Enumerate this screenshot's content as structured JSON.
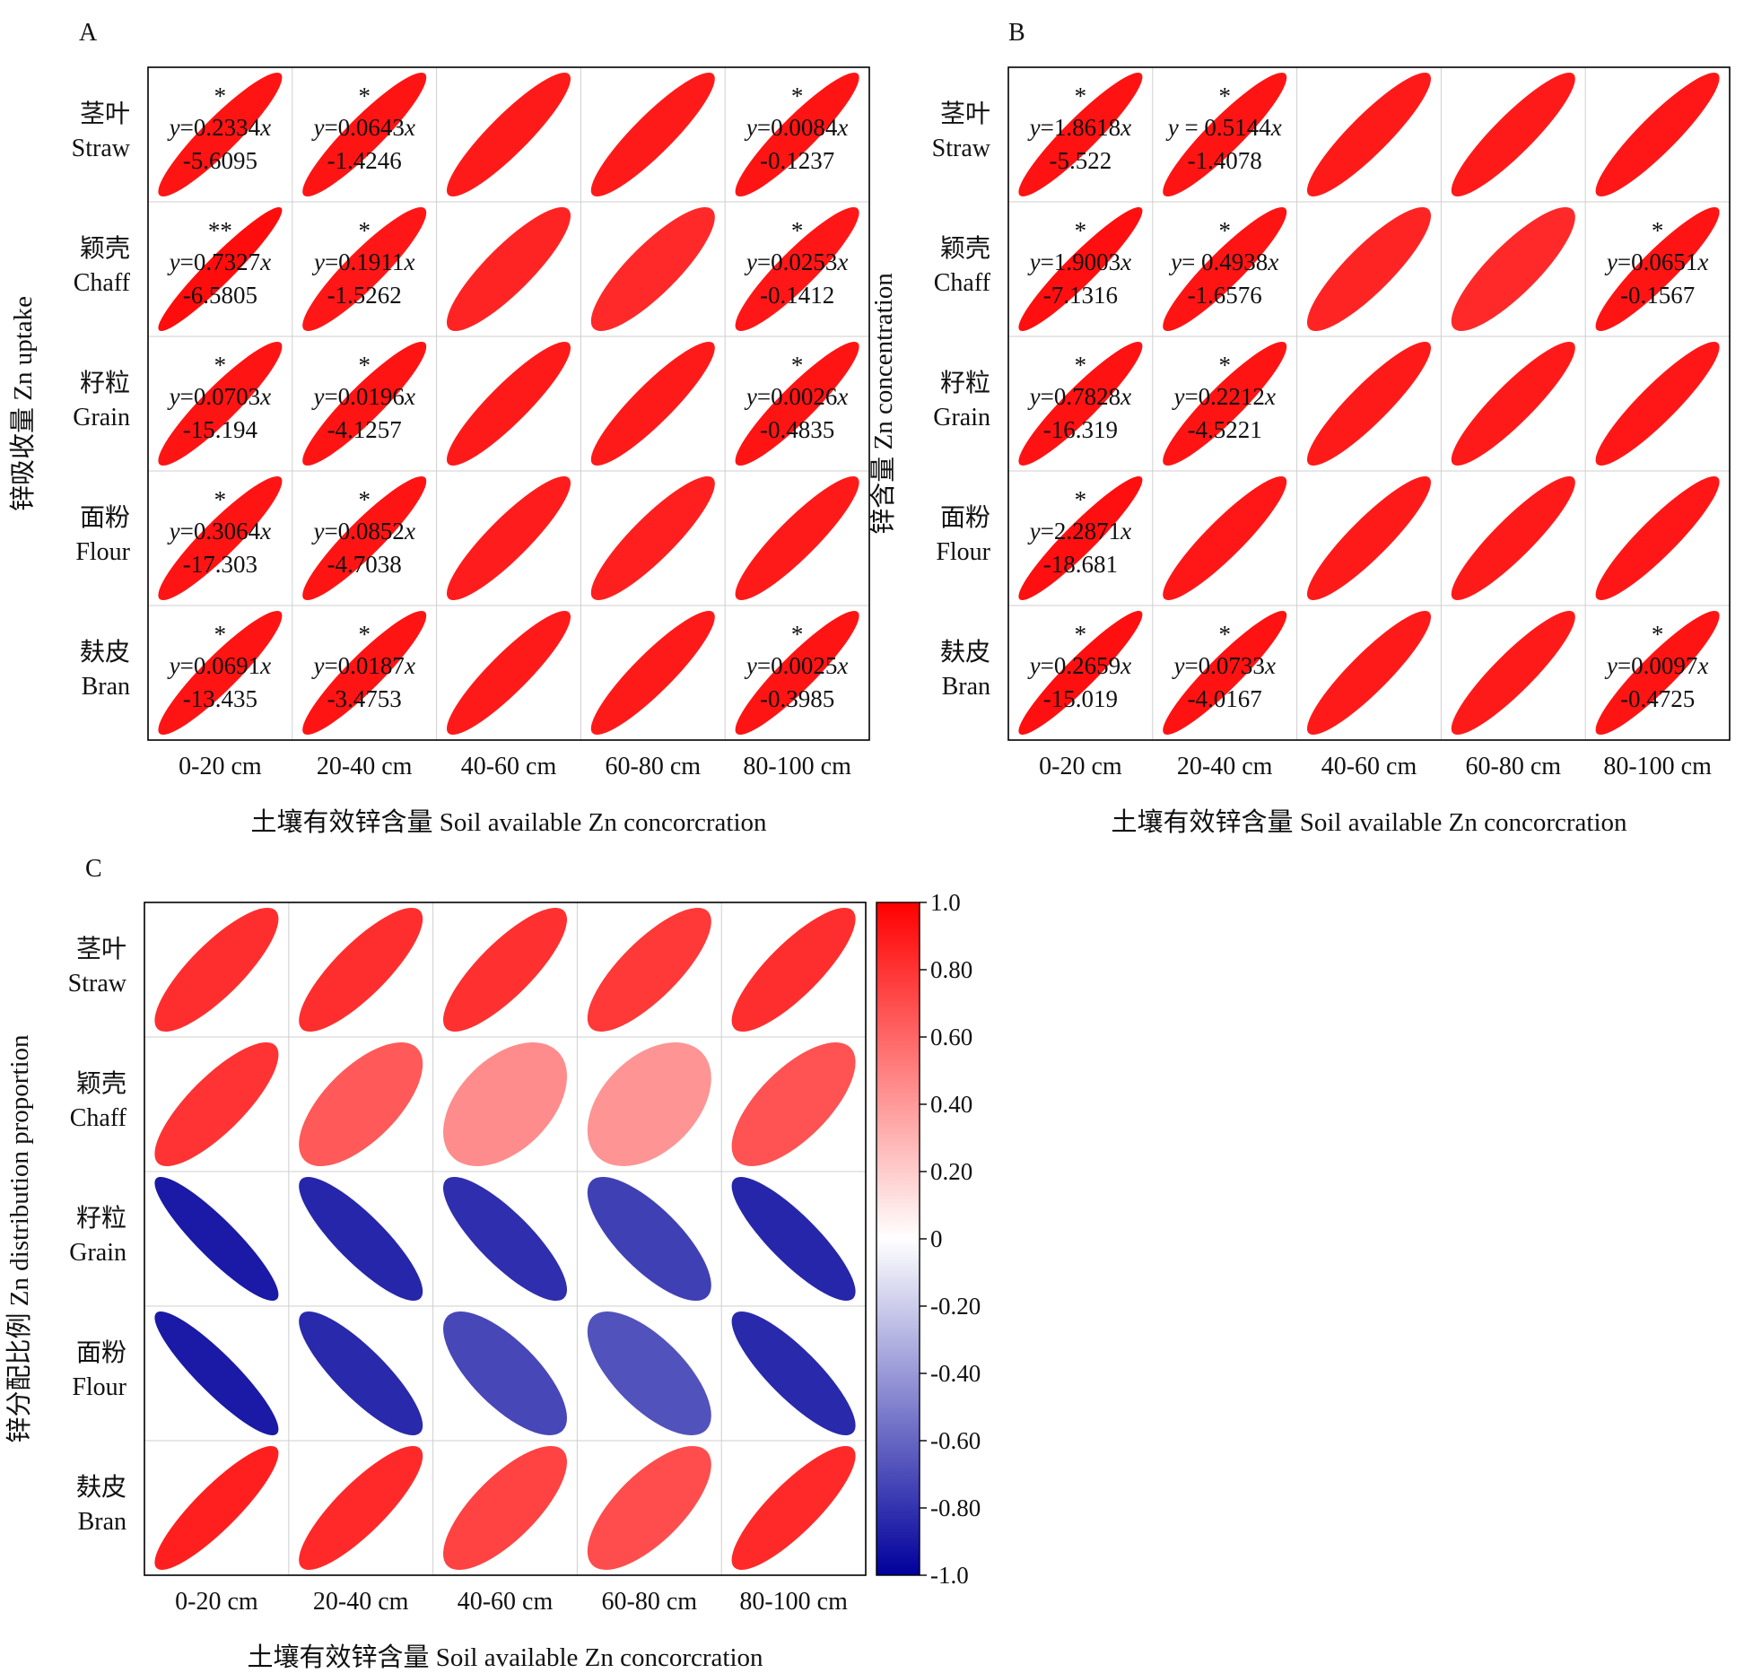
{
  "chart_data": [
    {
      "type": "heatmap",
      "subtype": "correlation-ellipse-matrix",
      "panel": "A",
      "rows": [
        {
          "cn": "茎叶",
          "en": "Straw"
        },
        {
          "cn": "颖壳",
          "en": "Chaff"
        },
        {
          "cn": "籽粒",
          "en": "Grain"
        },
        {
          "cn": "面粉",
          "en": "Flour"
        },
        {
          "cn": "麸皮",
          "en": "Bran"
        }
      ],
      "columns": [
        "0-20 cm",
        "20-40 cm",
        "40-60 cm",
        "60-80 cm",
        "80-100 cm"
      ],
      "ylabel": "锌吸收量 Zn uptake",
      "xlabel": "土壤有效锌含量 Soil available Zn concorcration",
      "correlations": [
        [
          0.92,
          0.92,
          0.9,
          0.9,
          0.92
        ],
        [
          0.95,
          0.91,
          0.86,
          0.84,
          0.91
        ],
        [
          0.92,
          0.92,
          0.9,
          0.9,
          0.92
        ],
        [
          0.92,
          0.92,
          0.89,
          0.88,
          0.9
        ],
        [
          0.92,
          0.92,
          0.9,
          0.9,
          0.92
        ]
      ],
      "annotations": [
        [
          {
            "sig": "*",
            "eq": [
              "y=0.2334x",
              "-5.6095"
            ]
          },
          {
            "sig": "*",
            "eq": [
              "y=0.0643x",
              "-1.4246"
            ]
          },
          null,
          null,
          {
            "sig": "*",
            "eq": [
              "y=0.0084x",
              "-0.1237"
            ]
          }
        ],
        [
          {
            "sig": "**",
            "eq": [
              "y=0.7327x",
              "-6.5805"
            ]
          },
          {
            "sig": "*",
            "eq": [
              "y=0.1911x",
              "-1.5262"
            ]
          },
          null,
          null,
          {
            "sig": "*",
            "eq": [
              "y=0.0253x",
              "-0.1412"
            ]
          }
        ],
        [
          {
            "sig": "*",
            "eq": [
              "y=0.0703x",
              "-15.194"
            ]
          },
          {
            "sig": "*",
            "eq": [
              "y=0.0196x",
              "-4.1257"
            ]
          },
          null,
          null,
          {
            "sig": "*",
            "eq": [
              "y=0.0026x",
              "-0.4835"
            ]
          }
        ],
        [
          {
            "sig": "*",
            "eq": [
              "y=0.3064x",
              "-17.303"
            ]
          },
          {
            "sig": "*",
            "eq": [
              "y=0.0852x",
              "-4.7038"
            ]
          },
          null,
          null,
          null
        ],
        [
          {
            "sig": "*",
            "eq": [
              "y=0.0691x",
              "-13.435"
            ]
          },
          {
            "sig": "*",
            "eq": [
              "y=0.0187x",
              "-3.4753"
            ]
          },
          null,
          null,
          {
            "sig": "*",
            "eq": [
              "y=0.0025x",
              "-0.3985"
            ]
          }
        ]
      ]
    },
    {
      "type": "heatmap",
      "subtype": "correlation-ellipse-matrix",
      "panel": "B",
      "rows": [
        {
          "cn": "茎叶",
          "en": "Straw"
        },
        {
          "cn": "颖壳",
          "en": "Chaff"
        },
        {
          "cn": "籽粒",
          "en": "Grain"
        },
        {
          "cn": "面粉",
          "en": "Flour"
        },
        {
          "cn": "麸皮",
          "en": "Bran"
        }
      ],
      "columns": [
        "0-20 cm",
        "20-40 cm",
        "40-60 cm",
        "60-80 cm",
        "80-100 cm"
      ],
      "ylabel": "锌含量 Zn concentration",
      "xlabel": "土壤有效锌含量 Soil available Zn concorcration",
      "correlations": [
        [
          0.93,
          0.92,
          0.9,
          0.9,
          0.91
        ],
        [
          0.94,
          0.92,
          0.86,
          0.84,
          0.92
        ],
        [
          0.93,
          0.92,
          0.9,
          0.9,
          0.91
        ],
        [
          0.94,
          0.91,
          0.9,
          0.9,
          0.91
        ],
        [
          0.94,
          0.93,
          0.9,
          0.9,
          0.92
        ]
      ],
      "annotations": [
        [
          {
            "sig": "*",
            "eq": [
              "y=1.8618x",
              "-5.522"
            ]
          },
          {
            "sig": "*",
            "eq": [
              "y = 0.5144x",
              "-1.4078"
            ]
          },
          null,
          null,
          null
        ],
        [
          {
            "sig": "*",
            "eq": [
              "y=1.9003x",
              "-7.1316"
            ]
          },
          {
            "sig": "*",
            "eq": [
              "y= 0.4938x",
              "-1.6576"
            ]
          },
          null,
          null,
          {
            "sig": "*",
            "eq": [
              "y=0.0651x",
              "-0.1567"
            ]
          }
        ],
        [
          {
            "sig": "*",
            "eq": [
              "y=0.7828x",
              "-16.319"
            ]
          },
          {
            "sig": "*",
            "eq": [
              "y=0.2212x",
              "-4.5221"
            ]
          },
          null,
          null,
          null
        ],
        [
          {
            "sig": "*",
            "eq": [
              "y=2.2871x",
              "-18.681"
            ]
          },
          null,
          null,
          null,
          null
        ],
        [
          {
            "sig": "*",
            "eq": [
              "y=0.2659x",
              "-15.019"
            ]
          },
          {
            "sig": "*",
            "eq": [
              "y=0.0733x",
              "-4.0167"
            ]
          },
          null,
          null,
          {
            "sig": "*",
            "eq": [
              "y=0.0097x",
              "-0.4725"
            ]
          }
        ]
      ]
    },
    {
      "type": "heatmap",
      "subtype": "correlation-ellipse-matrix",
      "panel": "C",
      "rows": [
        {
          "cn": "茎叶",
          "en": "Straw"
        },
        {
          "cn": "颖壳",
          "en": "Chaff"
        },
        {
          "cn": "籽粒",
          "en": "Grain"
        },
        {
          "cn": "面粉",
          "en": "Flour"
        },
        {
          "cn": "麸皮",
          "en": "Bran"
        }
      ],
      "columns": [
        "0-20 cm",
        "20-40 cm",
        "40-60 cm",
        "60-80 cm",
        "80-100 cm"
      ],
      "ylabel": "锌分配比例 Zn distribution proportion",
      "xlabel": "土壤有效锌含量 Soil available Zn concorcration",
      "correlations": [
        [
          0.82,
          0.82,
          0.81,
          0.78,
          0.82
        ],
        [
          0.8,
          0.65,
          0.45,
          0.42,
          0.68
        ],
        [
          -0.9,
          -0.85,
          -0.82,
          -0.75,
          -0.85
        ],
        [
          -0.9,
          -0.84,
          -0.72,
          -0.68,
          -0.84
        ],
        [
          0.88,
          0.84,
          0.74,
          0.7,
          0.84
        ]
      ],
      "annotations": [],
      "colorbar": {
        "range": [
          -1.0,
          1.0
        ],
        "ticks": [
          "1.0",
          "0.80",
          "0.60",
          "0.40",
          "0.20",
          "0",
          "-0.20",
          "-0.40",
          "-0.60",
          "-0.80",
          "-1.0"
        ],
        "colors": {
          "positive": "#ff0000",
          "zero": "#ffffff",
          "negative": "#00009c"
        }
      }
    }
  ]
}
